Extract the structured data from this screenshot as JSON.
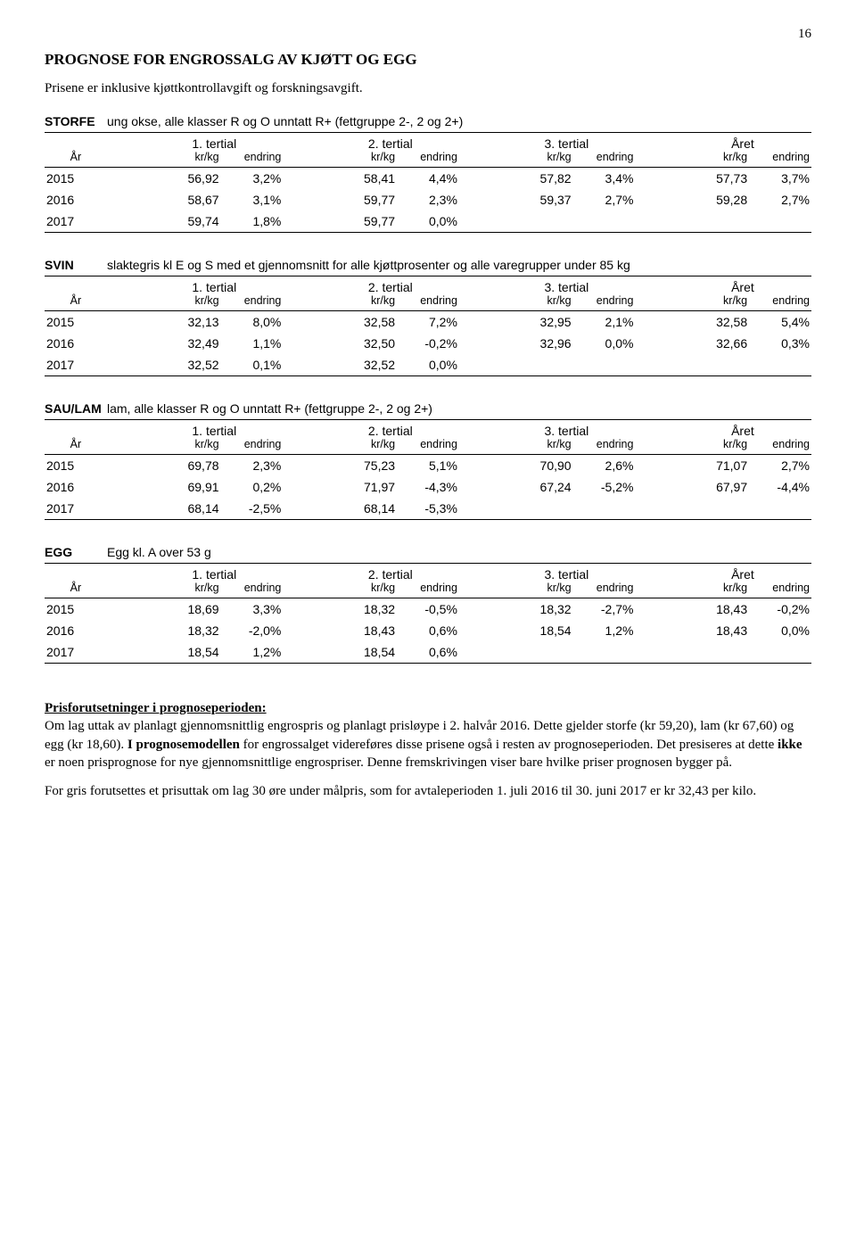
{
  "page_number": "16",
  "title": "PROGNOSE FOR ENGROSSALG AV KJØTT OG EGG",
  "subtitle": "Prisene er inklusive kjøttkontrollavgift og forskningsavgift.",
  "col_headers": {
    "year": "År",
    "t1": "1. tertial",
    "t2": "2. tertial",
    "t3": "3. tertial",
    "yr": "Året",
    "krkg": "kr/kg",
    "endring": "endring"
  },
  "sections": [
    {
      "cat": "STORFE",
      "desc": "ung okse, alle klasser R og O unntatt R+ (fettgruppe 2-, 2 og 2+)",
      "rows": [
        {
          "year": "2015",
          "t1v": "56,92",
          "t1c": "3,2%",
          "t2v": "58,41",
          "t2c": "4,4%",
          "t3v": "57,82",
          "t3c": "3,4%",
          "yv": "57,73",
          "yc": "3,7%"
        },
        {
          "year": "2016",
          "t1v": "58,67",
          "t1c": "3,1%",
          "t2v": "59,77",
          "t2c": "2,3%",
          "t3v": "59,37",
          "t3c": "2,7%",
          "yv": "59,28",
          "yc": "2,7%"
        },
        {
          "year": "2017",
          "t1v": "59,74",
          "t1c": "1,8%",
          "t2v": "59,77",
          "t2c": "0,0%",
          "t3v": "",
          "t3c": "",
          "yv": "",
          "yc": ""
        }
      ]
    },
    {
      "cat": "SVIN",
      "desc": "slaktegris kl E og S med et gjennomsnitt for alle kjøttprosenter og alle varegrupper under 85 kg",
      "rows": [
        {
          "year": "2015",
          "t1v": "32,13",
          "t1c": "8,0%",
          "t2v": "32,58",
          "t2c": "7,2%",
          "t3v": "32,95",
          "t3c": "2,1%",
          "yv": "32,58",
          "yc": "5,4%"
        },
        {
          "year": "2016",
          "t1v": "32,49",
          "t1c": "1,1%",
          "t2v": "32,50",
          "t2c": "-0,2%",
          "t3v": "32,96",
          "t3c": "0,0%",
          "yv": "32,66",
          "yc": "0,3%"
        },
        {
          "year": "2017",
          "t1v": "32,52",
          "t1c": "0,1%",
          "t2v": "32,52",
          "t2c": "0,0%",
          "t3v": "",
          "t3c": "",
          "yv": "",
          "yc": ""
        }
      ]
    },
    {
      "cat": "SAU/LAM",
      "desc": "lam, alle klasser R og O unntatt R+ (fettgruppe 2-, 2 og 2+)",
      "rows": [
        {
          "year": "2015",
          "t1v": "69,78",
          "t1c": "2,3%",
          "t2v": "75,23",
          "t2c": "5,1%",
          "t3v": "70,90",
          "t3c": "2,6%",
          "yv": "71,07",
          "yc": "2,7%"
        },
        {
          "year": "2016",
          "t1v": "69,91",
          "t1c": "0,2%",
          "t2v": "71,97",
          "t2c": "-4,3%",
          "t3v": "67,24",
          "t3c": "-5,2%",
          "yv": "67,97",
          "yc": "-4,4%"
        },
        {
          "year": "2017",
          "t1v": "68,14",
          "t1c": "-2,5%",
          "t2v": "68,14",
          "t2c": "-5,3%",
          "t3v": "",
          "t3c": "",
          "yv": "",
          "yc": ""
        }
      ]
    },
    {
      "cat": "EGG",
      "desc": "Egg kl. A over 53 g",
      "rows": [
        {
          "year": "2015",
          "t1v": "18,69",
          "t1c": "3,3%",
          "t2v": "18,32",
          "t2c": "-0,5%",
          "t3v": "18,32",
          "t3c": "-2,7%",
          "yv": "18,43",
          "yc": "-0,2%"
        },
        {
          "year": "2016",
          "t1v": "18,32",
          "t1c": "-2,0%",
          "t2v": "18,43",
          "t2c": "0,6%",
          "t3v": "18,54",
          "t3c": "1,2%",
          "yv": "18,43",
          "yc": "0,0%"
        },
        {
          "year": "2017",
          "t1v": "18,54",
          "t1c": "1,2%",
          "t2v": "18,54",
          "t2c": "0,6%",
          "t3v": "",
          "t3c": "",
          "yv": "",
          "yc": ""
        }
      ]
    }
  ],
  "footer": {
    "heading": "Prisforutsetninger i prognoseperioden:",
    "p1_a": "Om lag uttak av planlagt gjennomsnittlig engrospris og planlagt prisløype i 2. halvår 2016. Dette gjelder storfe (kr 59,20), lam (kr 67,60) og egg (kr 18,60). ",
    "p1_bold": "I prognosemodellen",
    "p1_b": " for engrossalget videreføres disse prisene også i resten av prognoseperioden. Det presiseres at dette ",
    "p1_bold2": "ikke",
    "p1_c": " er noen prisprognose for nye gjennomsnittlige engrospriser. Denne fremskrivingen viser bare hvilke priser prognosen bygger på.",
    "p2": "For gris forutsettes et prisuttak om lag 30 øre under målpris, som for avtaleperioden 1. juli 2016 til 30. juni 2017 er kr 32,43 per kilo."
  }
}
